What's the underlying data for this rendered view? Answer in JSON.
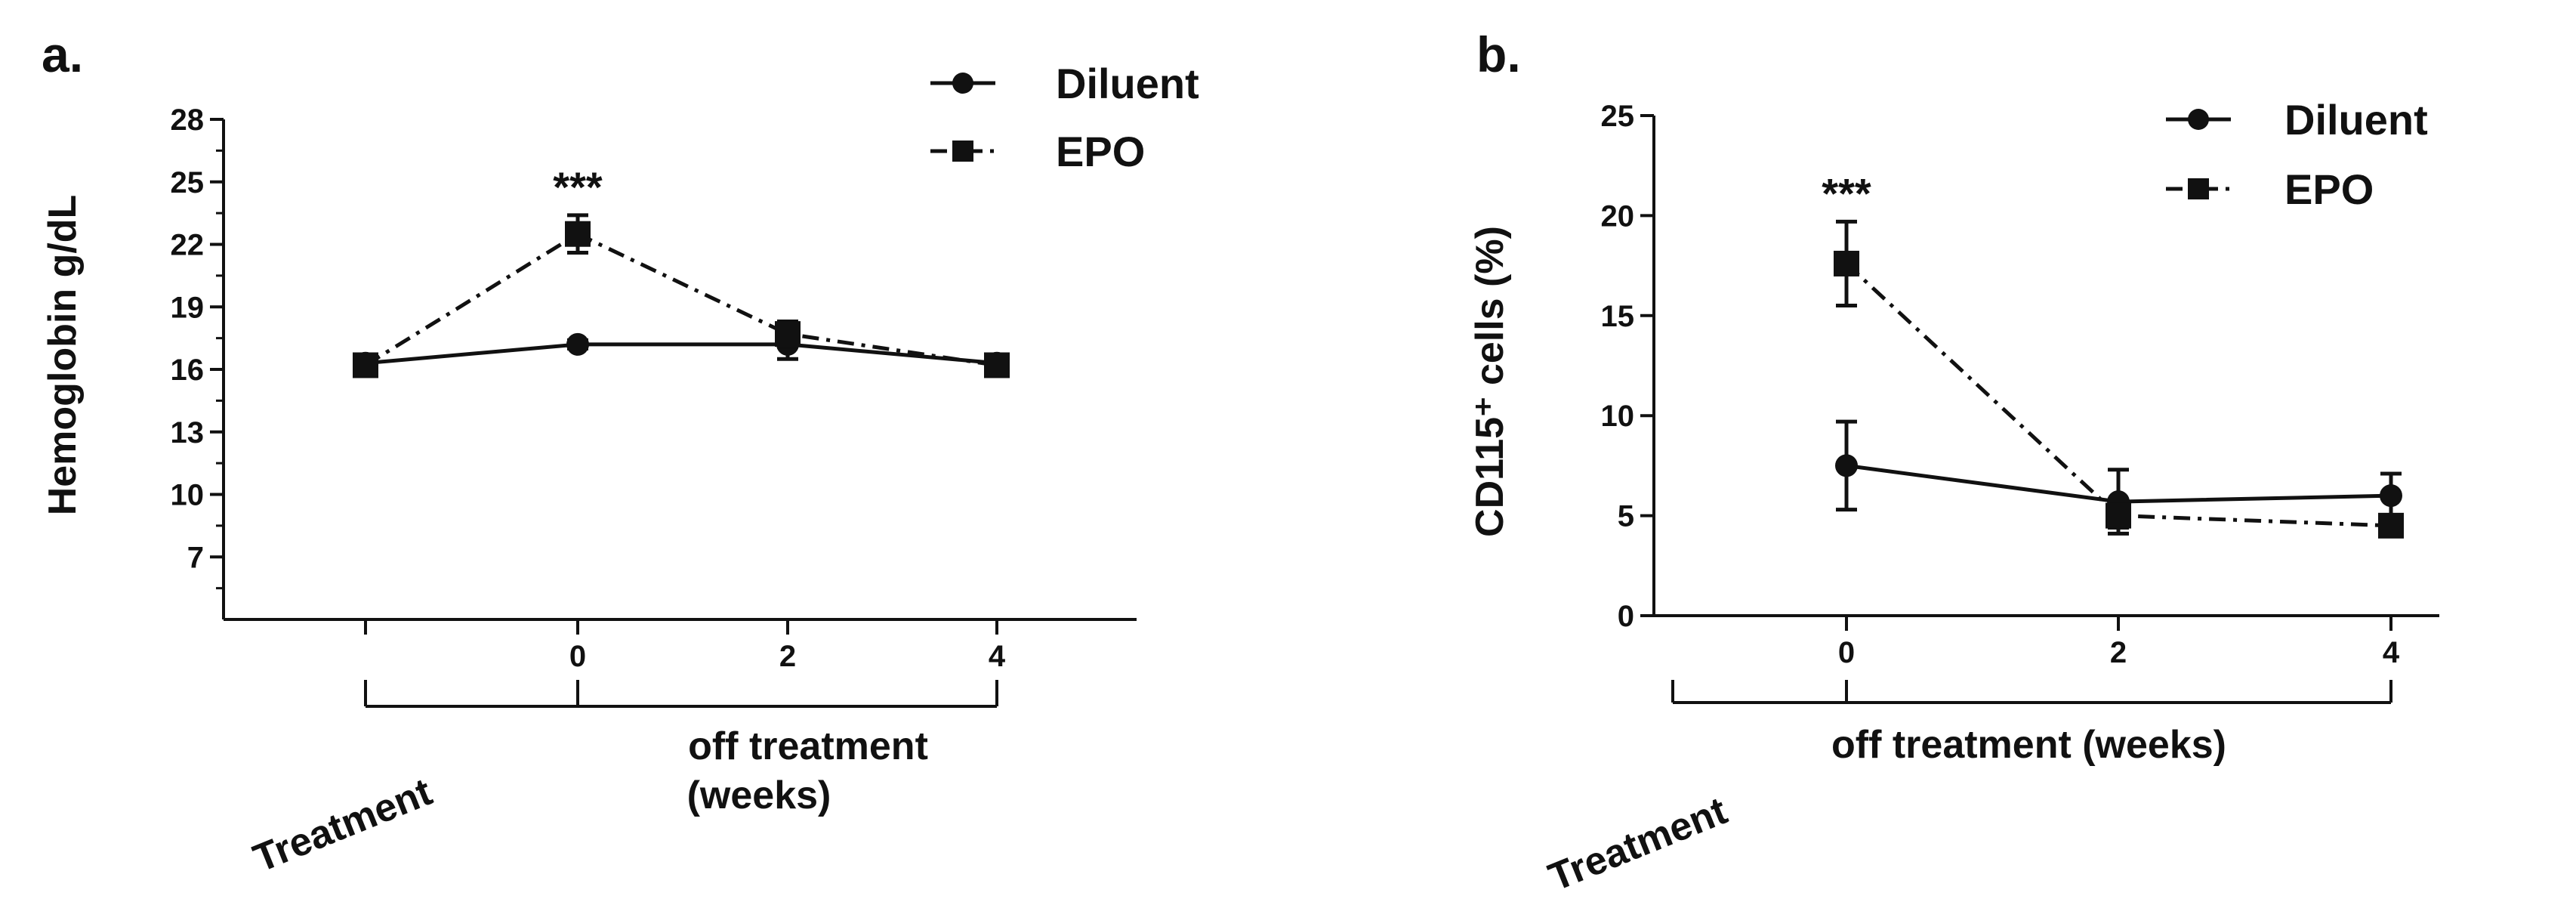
{
  "chart_data": [
    {
      "panel_label": "a.",
      "type": "line",
      "ylabel": "Hemoglobin g/dL",
      "ylim": [
        4,
        28
      ],
      "yticks": [
        7,
        10,
        13,
        16,
        19,
        22,
        25,
        28
      ],
      "x_categories": [
        "",
        "0",
        "2",
        "4"
      ],
      "bracket_labels": {
        "treatment": "Treatment",
        "off": "off treatment",
        "off2": "(weeks)"
      },
      "annotation": {
        "text": "***",
        "x_index": 1
      },
      "series": [
        {
          "name": "Diluent",
          "marker": "circle",
          "line": "solid",
          "values": [
            16.3,
            17.2,
            17.2,
            16.3
          ],
          "errors": [
            0.3,
            0.2,
            0.7,
            0.3
          ]
        },
        {
          "name": "EPO",
          "marker": "square",
          "line": "dashdot",
          "values": [
            16.2,
            22.5,
            17.7,
            16.2
          ],
          "errors": [
            0.3,
            0.9,
            0.6,
            0.3
          ]
        }
      ]
    },
    {
      "panel_label": "b.",
      "type": "line",
      "ylabel": "CD115⁺ cells (%)",
      "ylim": [
        0,
        25
      ],
      "yticks": [
        0,
        5,
        10,
        15,
        20,
        25
      ],
      "x_categories": [
        "0",
        "2",
        "4"
      ],
      "bracket_labels": {
        "treatment": "Treatment",
        "off": "off treatment (weeks)"
      },
      "annotation": {
        "text": "***",
        "x_index": 0
      },
      "series": [
        {
          "name": "Diluent",
          "marker": "circle",
          "line": "solid",
          "values": [
            7.5,
            5.7,
            6.0
          ],
          "errors": [
            2.2,
            1.6,
            1.1
          ]
        },
        {
          "name": "EPO",
          "marker": "square",
          "line": "dashdot",
          "values": [
            17.6,
            5.0,
            4.5
          ],
          "errors": [
            2.1,
            0.6,
            0.3
          ]
        }
      ]
    }
  ]
}
